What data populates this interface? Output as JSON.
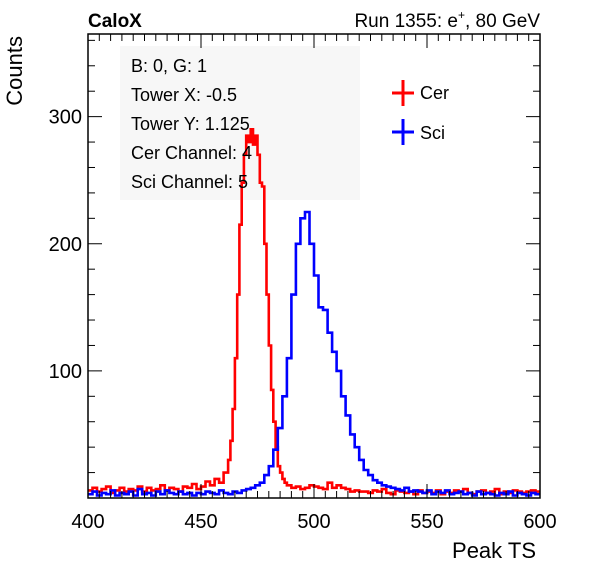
{
  "header": {
    "left": "CaloX",
    "right_prefix": "Run 1355: e",
    "right_sup": "+",
    "right_suffix": ", 80 GeV"
  },
  "info_box": [
    "B: 0, G: 1",
    "Tower X: -0.5",
    "Tower Y: 1.125",
    "Cer Channel: 4",
    "Sci Channel: 5"
  ],
  "colors": {
    "cer": "#ff0000",
    "sci": "#0000ff",
    "axis": "#000000"
  },
  "chart_data": {
    "type": "line",
    "xlabel": "Peak TS",
    "ylabel": "Counts",
    "xlim": [
      400,
      600
    ],
    "ylim": [
      0,
      365
    ],
    "xticks": [
      400,
      450,
      500,
      550,
      600
    ],
    "yticks": [
      100,
      200,
      300
    ],
    "legend": {
      "position": "top-right",
      "entries": [
        "Cer",
        "Sci"
      ]
    },
    "series": [
      {
        "name": "Cer",
        "color": "#ff0000",
        "x": [
          400,
          402,
          404,
          406,
          408,
          410,
          412,
          414,
          416,
          418,
          420,
          422,
          424,
          426,
          428,
          430,
          432,
          434,
          436,
          438,
          440,
          442,
          444,
          446,
          448,
          450,
          452,
          454,
          456,
          458,
          460,
          462,
          463,
          464,
          465,
          466,
          467,
          468,
          469,
          470,
          471,
          472,
          473,
          474,
          475,
          476,
          477,
          478,
          479,
          480,
          481,
          482,
          483,
          484,
          485,
          486,
          487,
          488,
          490,
          492,
          494,
          496,
          498,
          500,
          502,
          504,
          506,
          508,
          510,
          512,
          514,
          516,
          518,
          520,
          522,
          524,
          526,
          528,
          530,
          532,
          534,
          536,
          538,
          540,
          542,
          544,
          546,
          548,
          550,
          552,
          554,
          556,
          558,
          560,
          562,
          564,
          566,
          568,
          570,
          572,
          574,
          576,
          578,
          580,
          582,
          584,
          586,
          588,
          590,
          592,
          594,
          596,
          598
        ],
        "values": [
          6,
          8,
          5,
          7,
          9,
          4,
          6,
          8,
          5,
          7,
          6,
          9,
          5,
          8,
          6,
          7,
          10,
          6,
          8,
          7,
          5,
          9,
          8,
          11,
          7,
          9,
          13,
          10,
          15,
          12,
          20,
          30,
          45,
          70,
          110,
          160,
          215,
          248,
          270,
          285,
          280,
          290,
          278,
          285,
          270,
          248,
          245,
          200,
          160,
          120,
          85,
          60,
          40,
          25,
          20,
          15,
          12,
          10,
          8,
          9,
          7,
          8,
          10,
          9,
          8,
          7,
          12,
          8,
          10,
          8,
          7,
          5,
          6,
          5,
          5,
          4,
          6,
          5,
          7,
          4,
          3,
          6,
          5,
          4,
          5,
          3,
          6,
          4,
          5,
          4,
          6,
          3,
          5,
          4,
          6,
          5,
          7,
          4,
          3,
          5,
          6,
          4,
          5,
          7,
          3,
          5,
          4,
          6,
          5,
          4,
          5,
          6,
          5
        ]
      },
      {
        "name": "Sci",
        "color": "#0000ff",
        "x": [
          400,
          402,
          404,
          406,
          408,
          410,
          412,
          414,
          416,
          418,
          420,
          422,
          424,
          426,
          428,
          430,
          432,
          434,
          436,
          438,
          440,
          442,
          444,
          446,
          448,
          450,
          452,
          454,
          456,
          458,
          460,
          462,
          464,
          466,
          468,
          470,
          472,
          474,
          476,
          478,
          480,
          482,
          484,
          486,
          488,
          490,
          492,
          494,
          496,
          498,
          500,
          502,
          504,
          506,
          508,
          510,
          512,
          514,
          516,
          518,
          520,
          522,
          524,
          526,
          528,
          530,
          532,
          534,
          536,
          538,
          540,
          542,
          544,
          546,
          548,
          550,
          552,
          554,
          556,
          558,
          560,
          562,
          564,
          566,
          568,
          570,
          572,
          574,
          576,
          578,
          580,
          582,
          584,
          586,
          588,
          590,
          592,
          594,
          596,
          598
        ],
        "values": [
          3,
          5,
          2,
          4,
          3,
          6,
          2,
          4,
          3,
          5,
          2,
          7,
          3,
          4,
          2,
          5,
          3,
          6,
          4,
          3,
          5,
          3,
          4,
          2,
          4,
          3,
          5,
          4,
          3,
          6,
          4,
          3,
          5,
          4,
          6,
          7,
          8,
          10,
          12,
          18,
          25,
          38,
          55,
          80,
          110,
          160,
          200,
          220,
          225,
          200,
          175,
          150,
          148,
          130,
          115,
          100,
          80,
          65,
          50,
          40,
          30,
          22,
          18,
          14,
          12,
          10,
          9,
          8,
          7,
          6,
          8,
          5,
          6,
          5,
          4,
          6,
          3,
          5,
          4,
          6,
          3,
          4,
          5,
          3,
          4,
          2,
          5,
          3,
          4,
          3,
          2,
          4,
          3,
          5,
          2,
          4,
          3,
          2,
          4,
          3
        ]
      }
    ]
  }
}
